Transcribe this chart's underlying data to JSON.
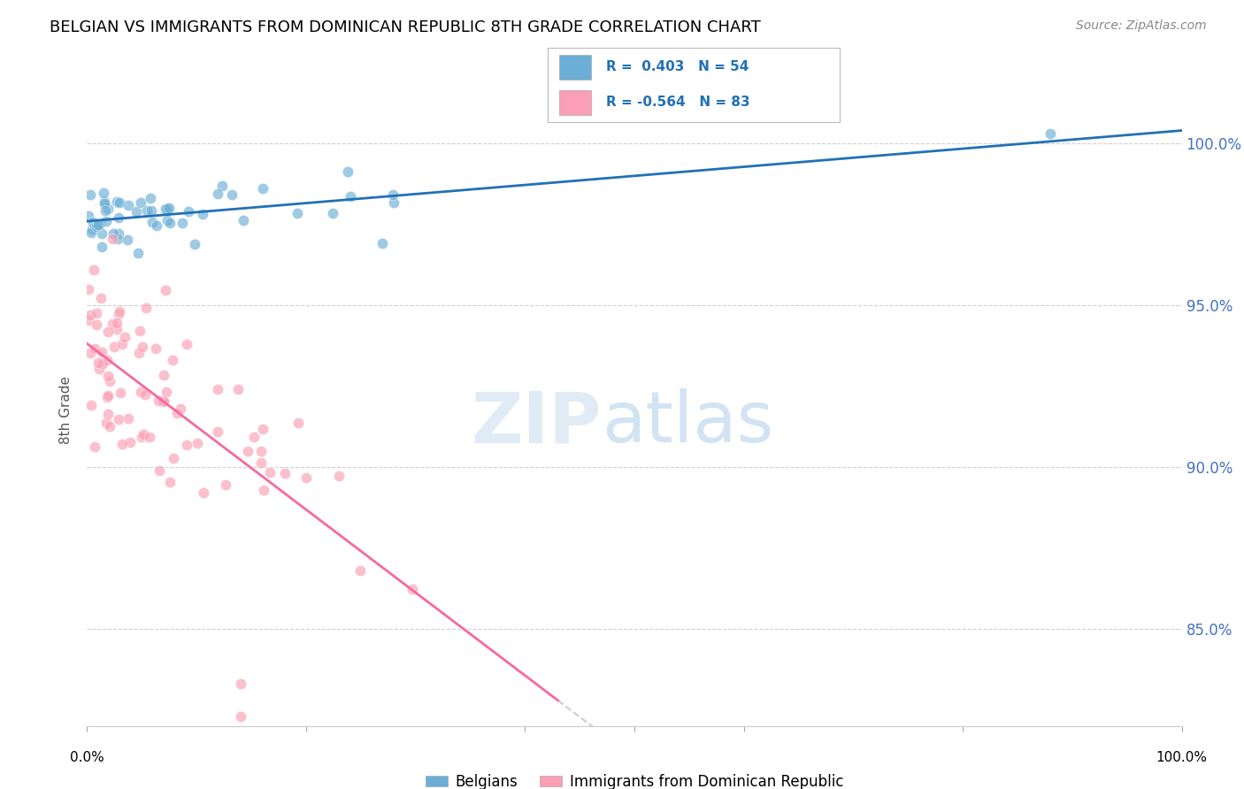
{
  "title": "BELGIAN VS IMMIGRANTS FROM DOMINICAN REPUBLIC 8TH GRADE CORRELATION CHART",
  "source": "Source: ZipAtlas.com",
  "ylabel": "8th Grade",
  "xlim": [
    0.0,
    1.0
  ],
  "ylim": [
    82.0,
    101.5
  ],
  "belgians_R": 0.403,
  "belgians_N": 54,
  "dominican_R": -0.564,
  "dominican_N": 83,
  "belgian_color": "#6baed6",
  "dominican_color": "#fa9fb5",
  "belgian_line_color": "#2171b5",
  "dominican_line_color": "#f768a1",
  "diagonal_color": "#cccccc",
  "background_color": "#ffffff",
  "ytick_vals": [
    85.0,
    90.0,
    95.0,
    100.0
  ],
  "right_tick_color": "#4472c4"
}
